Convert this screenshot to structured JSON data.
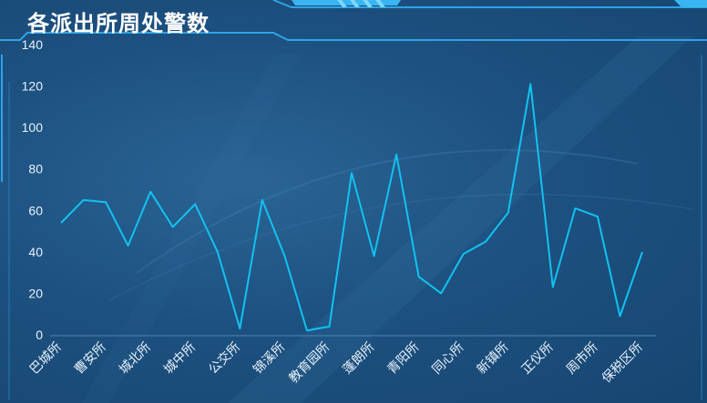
{
  "panel": {
    "title": "各派出所周处警数"
  },
  "colors": {
    "line": "#12c2f0",
    "axis_text": "#e6f1fb",
    "frame": "#2fa3e6",
    "background": "#1d5180"
  },
  "chart_data": {
    "type": "line",
    "title": "各派出所周处警数",
    "xlabel": "",
    "ylabel": "",
    "ylim": [
      0,
      140
    ],
    "yticks": [
      0,
      20,
      40,
      60,
      80,
      100,
      120,
      140
    ],
    "grid": false,
    "categories": [
      "巴城所",
      "",
      "曹安所",
      "",
      "城北所",
      "",
      "城中所",
      "",
      "公交所",
      "",
      "锦溪所",
      "",
      "教育园所",
      "",
      "蓬朗所",
      "",
      "青阳所",
      "",
      "同心所",
      "",
      "新镇所",
      "",
      "正仪所",
      "",
      "周市所",
      "",
      "保税区所"
    ],
    "x_label_indices": [
      0,
      2,
      4,
      6,
      8,
      10,
      12,
      14,
      16,
      18,
      20,
      22,
      24,
      26
    ],
    "series": [
      {
        "values": [
          54,
          65,
          64,
          43,
          69,
          52,
          63,
          40,
          3,
          65,
          38,
          2,
          4,
          78,
          38,
          87,
          28,
          20,
          39,
          45,
          59,
          121,
          23,
          61,
          57,
          9,
          40
        ]
      }
    ]
  }
}
